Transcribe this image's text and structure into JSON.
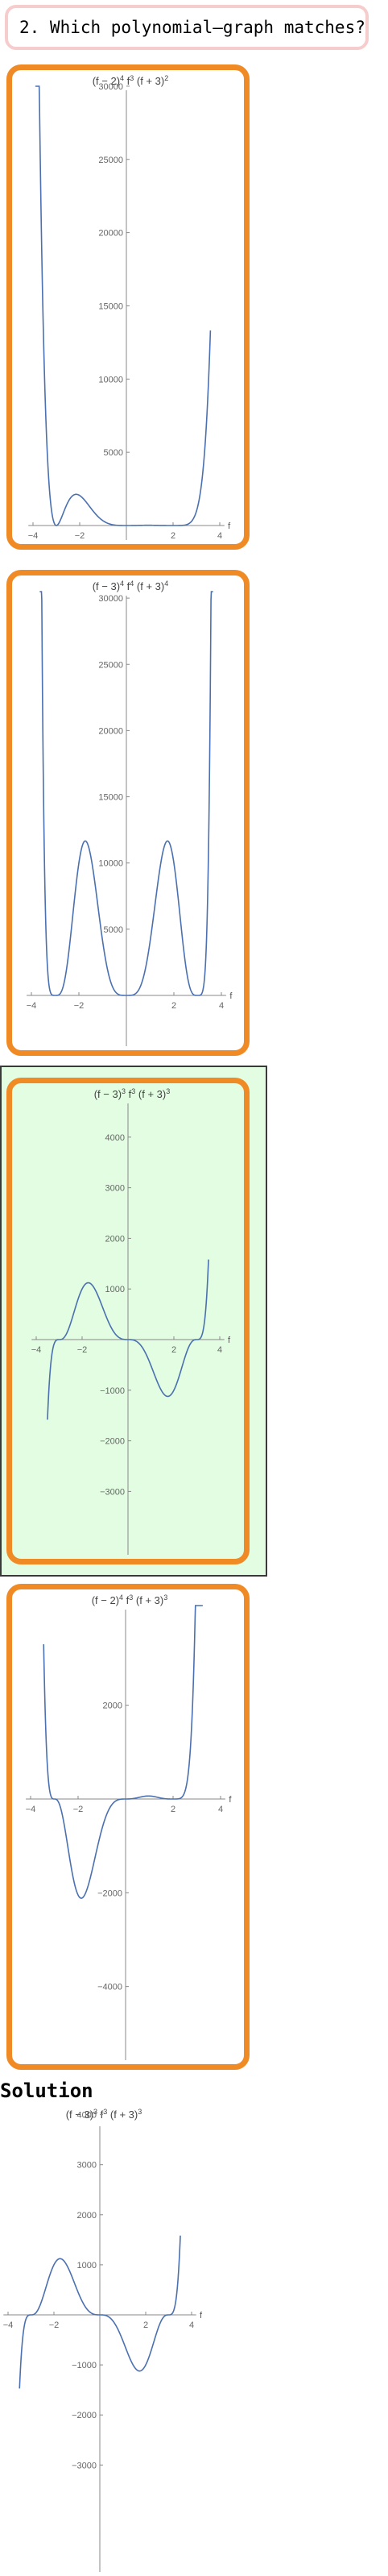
{
  "question": {
    "text": "2. Which polynomial–graph matches?"
  },
  "choices": [
    {
      "formula": {
        "base": "(f − 2)",
        "exp1": "4",
        "mid": " f",
        "exp2": "3",
        "tail": " (f + 3)",
        "exp3": "2"
      },
      "y_ticks": [
        "30000",
        "25000",
        "20000",
        "15000",
        "10000",
        "5000"
      ],
      "x_ticks": [
        "−4",
        "−2",
        "2",
        "4"
      ],
      "axis_label": "f",
      "correct": false
    },
    {
      "formula": {
        "base": "(f − 3)",
        "exp1": "4",
        "mid": " f",
        "exp2": "4",
        "tail": " (f + 3)",
        "exp3": "4"
      },
      "y_ticks": [
        "30000",
        "25000",
        "20000",
        "15000",
        "10000",
        "5000"
      ],
      "x_ticks": [
        "−4",
        "−2",
        "2",
        "4"
      ],
      "axis_label": "f",
      "correct": false
    },
    {
      "formula": {
        "base": "(f − 3)",
        "exp1": "3",
        "mid": " f",
        "exp2": "3",
        "tail": " (f + 3)",
        "exp3": "3"
      },
      "y_ticks": [
        "4000",
        "3000",
        "2000",
        "1000",
        "−1000",
        "−2000",
        "−3000"
      ],
      "x_ticks": [
        "−4",
        "−2",
        "2",
        "4"
      ],
      "axis_label": "f",
      "correct": true
    },
    {
      "formula": {
        "base": "(f − 2)",
        "exp1": "4",
        "mid": " f",
        "exp2": "3",
        "tail": " (f + 3)",
        "exp3": "3"
      },
      "y_ticks": [
        "2000",
        "−2000",
        "−4000"
      ],
      "x_ticks": [
        "−4",
        "−2",
        "2",
        "4"
      ],
      "axis_label": "f",
      "correct": false
    }
  ],
  "solution": {
    "title": "Solution",
    "formula": {
      "base": "(f − 3)",
      "exp1": "3",
      "mid": " f",
      "exp2": "3",
      "tail": " (f + 3)",
      "exp3": "3"
    },
    "y_ticks": [
      "4000",
      "3000",
      "2000",
      "1000",
      "−1000",
      "−2000",
      "−3000"
    ],
    "x_ticks": [
      "−4",
      "−2",
      "2",
      "4"
    ],
    "axis_label": "f"
  },
  "colors": {
    "accent": "#f08a24",
    "curve": "#4a70b0",
    "correct_bg": "#e2fde2",
    "question_border": "#f6cccc"
  }
}
